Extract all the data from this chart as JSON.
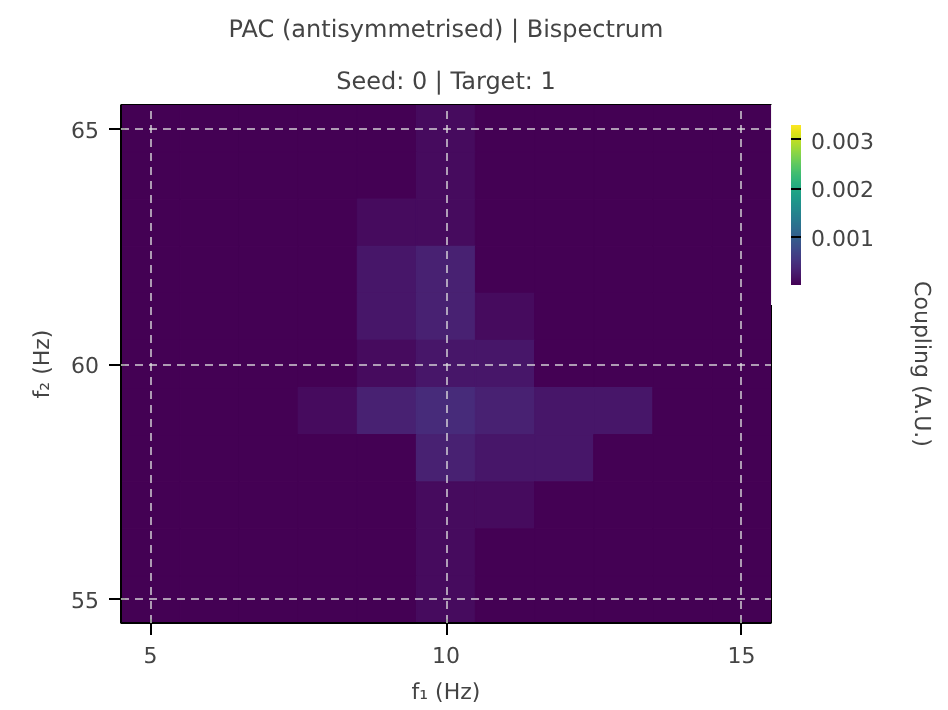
{
  "chart_data": {
    "type": "heatmap",
    "title": "PAC (antisymmetrised) | Bispectrum",
    "subtitle": "Seed: 0 | Target: 1",
    "xlabel": "f₁ (Hz)",
    "ylabel": "f₂ (Hz)",
    "clabel": "Coupling (A.U.)",
    "x": [
      5,
      6,
      7,
      8,
      9,
      10,
      11,
      12,
      13,
      14,
      15
    ],
    "y": [
      65,
      64,
      63,
      62,
      61,
      60,
      59,
      58,
      57,
      56,
      55
    ],
    "cells": [
      [
        0,
        0,
        0,
        0,
        0,
        0.0001,
        0,
        0,
        0,
        0,
        0
      ],
      [
        0,
        0,
        0,
        0,
        0,
        0.0001,
        0,
        0,
        0,
        0,
        0
      ],
      [
        0,
        0,
        0,
        0,
        0.0001,
        0.0001,
        0,
        0,
        0,
        0,
        0
      ],
      [
        0,
        0,
        0,
        0,
        0.0002,
        0.0003,
        0,
        0,
        0,
        0,
        0
      ],
      [
        0,
        0,
        0,
        0,
        0.0002,
        0.0003,
        0.0001,
        0,
        0,
        0,
        0
      ],
      [
        0,
        0,
        0,
        0,
        0.0001,
        0.0002,
        0.0002,
        0,
        0,
        0,
        0
      ],
      [
        0,
        0,
        0,
        0.0001,
        0.0003,
        0.0004,
        0.0003,
        0.0002,
        0.0002,
        0,
        0
      ],
      [
        0,
        0,
        0,
        0,
        0,
        0.0003,
        0.0002,
        0.0002,
        0,
        0,
        0
      ],
      [
        0,
        0,
        0,
        0,
        0,
        0.0001,
        0.0001,
        0,
        0,
        0,
        0
      ],
      [
        0,
        0,
        0,
        0,
        0,
        0.0001,
        0,
        0,
        0,
        0,
        0
      ],
      [
        0,
        0,
        0,
        0,
        0,
        0.0001,
        0,
        0,
        0,
        0,
        0
      ]
    ],
    "xlim": [
      4.5,
      15.5
    ],
    "ylim": [
      54.5,
      65.5
    ],
    "xticks": [
      5,
      10,
      15
    ],
    "yticks": [
      55,
      60,
      65
    ],
    "clim": [
      0,
      0.0033
    ],
    "cticks": [
      0.001,
      0.002,
      0.003
    ],
    "grid": true
  }
}
